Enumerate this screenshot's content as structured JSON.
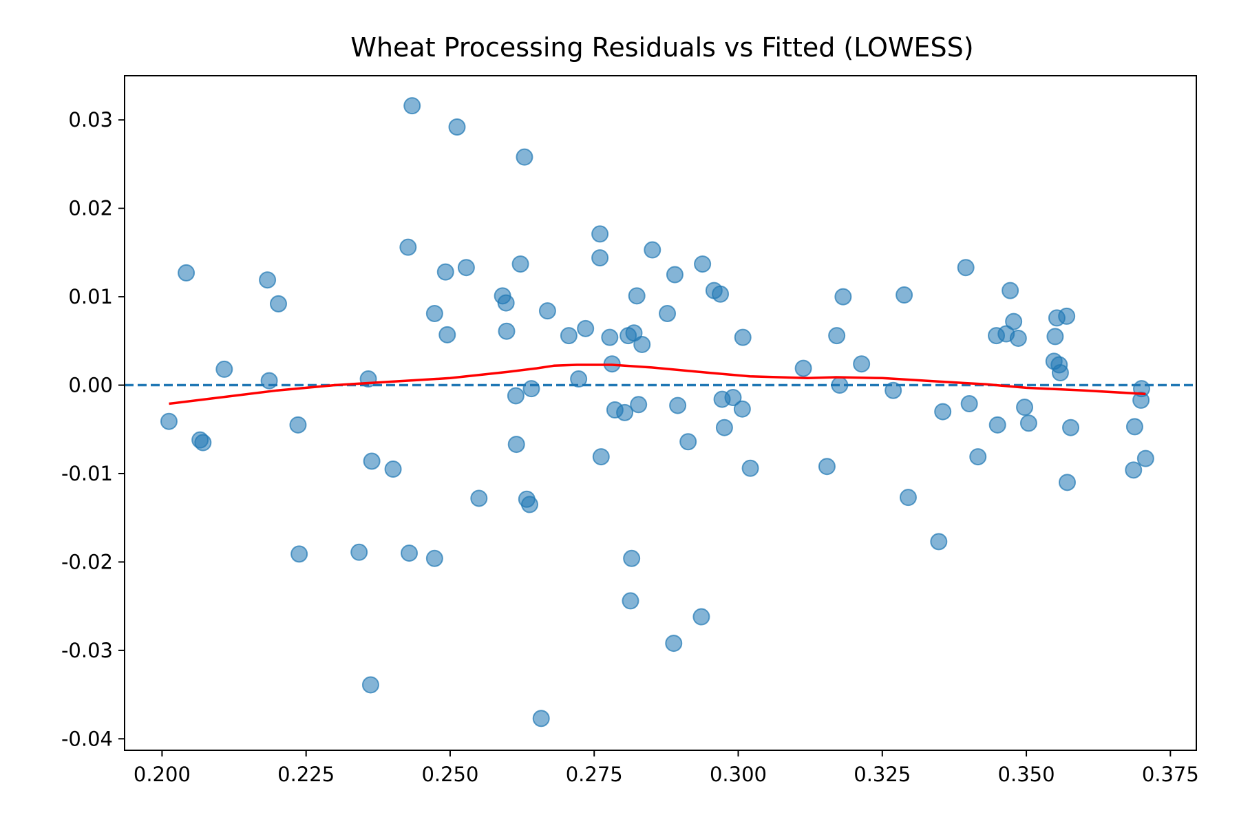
{
  "chart_data": {
    "type": "scatter",
    "title": "Wheat Processing Residuals vs Fitted (LOWESS)",
    "xlabel": "",
    "ylabel": "",
    "xlim": [
      0.1935,
      0.3795
    ],
    "ylim": [
      -0.0413,
      0.035
    ],
    "xticks": [
      0.2,
      0.225,
      0.25,
      0.275,
      0.3,
      0.325,
      0.35,
      0.375
    ],
    "xtick_labels": [
      "0.200",
      "0.225",
      "0.250",
      "0.275",
      "0.300",
      "0.325",
      "0.350",
      "0.375"
    ],
    "yticks": [
      0.03,
      0.02,
      0.01,
      0.0,
      -0.01,
      -0.02,
      -0.03,
      -0.04
    ],
    "ytick_labels": [
      "0.03",
      "0.02",
      "0.01",
      "0.00",
      "-0.01",
      "-0.02",
      "-0.03",
      "-0.04"
    ],
    "grid": false,
    "colors": {
      "points": "#1f77b4",
      "lowess": "#ff0000",
      "zero_line": "#1f77b4"
    },
    "reference_line": {
      "y": 0,
      "style": "dashed"
    },
    "points": [
      [
        0.2012,
        -0.0041
      ],
      [
        0.2042,
        0.0127
      ],
      [
        0.2066,
        -0.0062
      ],
      [
        0.2071,
        -0.0065
      ],
      [
        0.2108,
        0.0018
      ],
      [
        0.2183,
        0.0119
      ],
      [
        0.2186,
        0.0005
      ],
      [
        0.2202,
        0.0092
      ],
      [
        0.2236,
        -0.0045
      ],
      [
        0.2238,
        -0.0191
      ],
      [
        0.2342,
        -0.0189
      ],
      [
        0.2358,
        0.0007
      ],
      [
        0.2362,
        -0.0339
      ],
      [
        0.2364,
        -0.0086
      ],
      [
        0.2401,
        -0.0095
      ],
      [
        0.2427,
        0.0156
      ],
      [
        0.2429,
        -0.019
      ],
      [
        0.2434,
        0.0316
      ],
      [
        0.2473,
        0.0081
      ],
      [
        0.2473,
        -0.0196
      ],
      [
        0.2492,
        0.0128
      ],
      [
        0.2495,
        0.0057
      ],
      [
        0.2512,
        0.0292
      ],
      [
        0.2528,
        0.0133
      ],
      [
        0.255,
        -0.0128
      ],
      [
        0.2591,
        0.0101
      ],
      [
        0.2597,
        0.0093
      ],
      [
        0.2598,
        0.0061
      ],
      [
        0.2614,
        -0.0012
      ],
      [
        0.2615,
        -0.0067
      ],
      [
        0.2622,
        0.0137
      ],
      [
        0.2629,
        0.0258
      ],
      [
        0.2633,
        -0.0129
      ],
      [
        0.2638,
        -0.0135
      ],
      [
        0.2641,
        -0.0004
      ],
      [
        0.2658,
        -0.0377
      ],
      [
        0.2669,
        0.0084
      ],
      [
        0.2706,
        0.0056
      ],
      [
        0.2723,
        0.0007
      ],
      [
        0.2735,
        0.0064
      ],
      [
        0.276,
        0.0171
      ],
      [
        0.276,
        0.0144
      ],
      [
        0.2762,
        -0.0081
      ],
      [
        0.2777,
        0.0054
      ],
      [
        0.2781,
        0.0024
      ],
      [
        0.2786,
        -0.0028
      ],
      [
        0.2803,
        -0.0031
      ],
      [
        0.2809,
        0.0056
      ],
      [
        0.2813,
        -0.0244
      ],
      [
        0.2815,
        -0.0196
      ],
      [
        0.2819,
        0.0059
      ],
      [
        0.2824,
        0.0101
      ],
      [
        0.2827,
        -0.0022
      ],
      [
        0.2833,
        0.0046
      ],
      [
        0.2851,
        0.0153
      ],
      [
        0.2877,
        0.0081
      ],
      [
        0.2888,
        -0.0292
      ],
      [
        0.289,
        0.0125
      ],
      [
        0.2895,
        -0.0023
      ],
      [
        0.2913,
        -0.0064
      ],
      [
        0.2936,
        -0.0262
      ],
      [
        0.2938,
        0.0137
      ],
      [
        0.2958,
        0.0107
      ],
      [
        0.2969,
        0.0103
      ],
      [
        0.2972,
        -0.0016
      ],
      [
        0.2976,
        -0.0048
      ],
      [
        0.2991,
        -0.0014
      ],
      [
        0.3007,
        -0.0027
      ],
      [
        0.3008,
        0.0054
      ],
      [
        0.3021,
        -0.0094
      ],
      [
        0.3113,
        0.0019
      ],
      [
        0.3154,
        -0.0092
      ],
      [
        0.3171,
        0.0056
      ],
      [
        0.3176,
        0.0
      ],
      [
        0.3182,
        0.01
      ],
      [
        0.3214,
        0.0024
      ],
      [
        0.3269,
        -0.0006
      ],
      [
        0.3288,
        0.0102
      ],
      [
        0.3295,
        -0.0127
      ],
      [
        0.3348,
        -0.0177
      ],
      [
        0.3355,
        -0.003
      ],
      [
        0.3395,
        0.0133
      ],
      [
        0.3401,
        -0.0021
      ],
      [
        0.3416,
        -0.0081
      ],
      [
        0.3448,
        0.0056
      ],
      [
        0.345,
        -0.0045
      ],
      [
        0.3465,
        0.0058
      ],
      [
        0.3472,
        0.0107
      ],
      [
        0.3478,
        0.0072
      ],
      [
        0.3486,
        0.0053
      ],
      [
        0.3497,
        -0.0025
      ],
      [
        0.3504,
        -0.0043
      ],
      [
        0.3548,
        0.0027
      ],
      [
        0.355,
        0.0055
      ],
      [
        0.3553,
        0.0076
      ],
      [
        0.3557,
        0.0023
      ],
      [
        0.3559,
        0.0014
      ],
      [
        0.357,
        0.0078
      ],
      [
        0.3571,
        -0.011
      ],
      [
        0.3577,
        -0.0048
      ],
      [
        0.3686,
        -0.0096
      ],
      [
        0.3688,
        -0.0047
      ],
      [
        0.3699,
        -0.0017
      ],
      [
        0.37,
        -0.0004
      ],
      [
        0.3707,
        -0.0083
      ]
    ],
    "lowess": [
      [
        0.2012,
        -0.0021
      ],
      [
        0.21,
        -0.0014
      ],
      [
        0.22,
        -0.0006
      ],
      [
        0.23,
        0.0
      ],
      [
        0.24,
        0.0004
      ],
      [
        0.25,
        0.0008
      ],
      [
        0.26,
        0.0015
      ],
      [
        0.265,
        0.0019
      ],
      [
        0.268,
        0.0022
      ],
      [
        0.272,
        0.0023
      ],
      [
        0.278,
        0.0023
      ],
      [
        0.285,
        0.002
      ],
      [
        0.295,
        0.0014
      ],
      [
        0.302,
        0.001
      ],
      [
        0.312,
        0.0008
      ],
      [
        0.317,
        0.0009
      ],
      [
        0.325,
        0.0008
      ],
      [
        0.335,
        0.0004
      ],
      [
        0.343,
        0.0001
      ],
      [
        0.35,
        -0.0003
      ],
      [
        0.36,
        -0.0006
      ],
      [
        0.3707,
        -0.001
      ]
    ]
  }
}
